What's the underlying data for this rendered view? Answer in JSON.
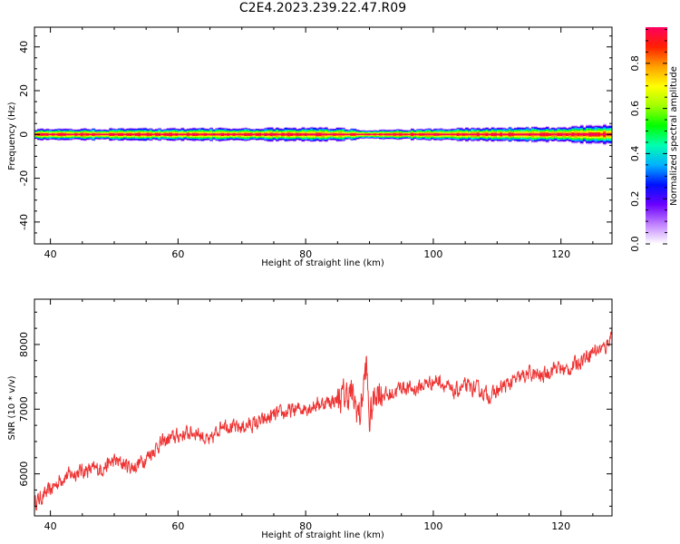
{
  "title": "C2E4.2023.239.22.47.R09",
  "chart_data": [
    {
      "type": "heatmap",
      "xlabel": "Height of straight line (km)",
      "ylabel": "Frequency (Hz)",
      "xlim": [
        37.5,
        128
      ],
      "ylim": [
        -50,
        49
      ],
      "xticks": [
        40,
        60,
        80,
        100,
        120
      ],
      "yticks": [
        -40,
        -20,
        0,
        20,
        40
      ],
      "ytick_labels": [
        "-40",
        "-20",
        "0",
        "20",
        "40"
      ],
      "band_center_hz": 0,
      "band_halfwidth_hz": [
        [
          37.5,
          2.6
        ],
        [
          84,
          3.2
        ],
        [
          90,
          2.0
        ],
        [
          100,
          2.8
        ],
        [
          120,
          3.6
        ],
        [
          128,
          4.8
        ]
      ],
      "colorbar": {
        "label": "Normalized spectral amplitude",
        "range": [
          0,
          0.96
        ],
        "ticks": [
          0.0,
          0.2,
          0.4,
          0.6,
          0.8
        ],
        "tick_labels": [
          "0.0",
          "0.2",
          "0.4",
          "0.6",
          "0.8"
        ],
        "colormap": [
          "#ffffff",
          "#c080ff",
          "#6a00ff",
          "#0010ff",
          "#00b0ff",
          "#00ffb0",
          "#00ff00",
          "#a0ff00",
          "#ffff00",
          "#ffa000",
          "#ff2000",
          "#ff0060"
        ]
      }
    },
    {
      "type": "line",
      "xlabel": "Height of straight line (km)",
      "ylabel": "SNR (10 * v/v)",
      "xlim": [
        37.5,
        128
      ],
      "ylim": [
        5350,
        8700
      ],
      "xticks": [
        40,
        60,
        80,
        100,
        120
      ],
      "yticks": [
        6000,
        7000,
        8000
      ],
      "ytick_labels": [
        "6000",
        "7000",
        "8000"
      ],
      "color": "#ee3333",
      "series": [
        {
          "x": [
            37.5,
            40,
            42,
            45,
            48,
            50,
            53,
            55,
            57,
            59,
            61,
            63,
            65,
            67,
            69,
            71,
            73,
            75,
            77,
            79,
            81,
            83,
            85,
            87,
            88.5,
            89.5,
            90,
            91,
            93,
            95,
            97,
            99,
            101,
            103,
            105,
            107,
            109,
            111,
            113,
            115,
            117,
            119,
            121,
            123,
            125,
            127,
            128
          ],
          "y": [
            5550,
            5750,
            5950,
            6050,
            6080,
            6200,
            6100,
            6250,
            6450,
            6550,
            6620,
            6650,
            6480,
            6800,
            6700,
            6750,
            6800,
            6900,
            6950,
            7000,
            7050,
            7100,
            7150,
            7250,
            6900,
            7700,
            6800,
            7300,
            7200,
            7350,
            7300,
            7400,
            7450,
            7250,
            7350,
            7300,
            7200,
            7350,
            7450,
            7550,
            7500,
            7650,
            7600,
            7750,
            7900,
            7950,
            8200
          ],
          "noise_amplitude": 130,
          "samples": 1400
        }
      ]
    }
  ]
}
